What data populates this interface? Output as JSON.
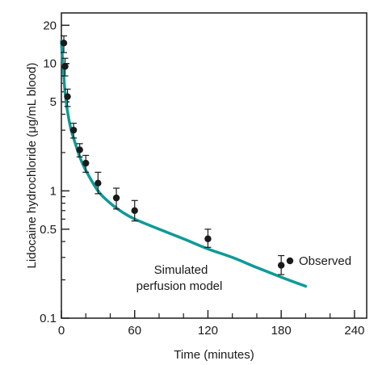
{
  "chart_data": {
    "type": "scatter",
    "title": "",
    "xlabel": "Time (minutes)",
    "ylabel": "Lidocaine hydrochloride (μg/mL blood)",
    "y_scale": "log",
    "xlim": [
      0,
      250
    ],
    "ylim": [
      0.1,
      25
    ],
    "x_ticks": [
      0,
      60,
      120,
      180,
      240
    ],
    "x_minor_ticks": [
      20,
      40,
      80,
      100,
      140,
      160,
      200,
      220
    ],
    "x_tick_labels": [
      "0",
      "60",
      "120",
      "180",
      "240"
    ],
    "y_ticks": [
      0.1,
      0.5,
      1,
      5,
      10,
      20
    ],
    "y_minor_ticks": [
      0.2,
      0.3,
      0.4,
      0.6,
      0.7,
      0.8,
      0.9,
      2,
      3,
      4,
      6,
      7,
      8,
      9
    ],
    "y_tick_labels": [
      "0.1",
      "0.5",
      "1",
      "5",
      "10",
      "20"
    ],
    "grid": false,
    "legend_position": "right",
    "series": [
      {
        "name": "Observed",
        "kind": "points_with_error_bars",
        "color": "#1a1a1a",
        "x": [
          2,
          3,
          5,
          10,
          15,
          20,
          30,
          45,
          60,
          120,
          180
        ],
        "y": [
          14.5,
          9.5,
          5.5,
          3.0,
          2.1,
          1.65,
          1.15,
          0.88,
          0.7,
          0.42,
          0.26
        ],
        "y_err_low": [
          12.2,
          8.0,
          4.6,
          2.6,
          1.85,
          1.4,
          0.95,
          0.72,
          0.58,
          0.36,
          0.22
        ],
        "y_err_high": [
          16.5,
          11.0,
          6.3,
          3.4,
          2.35,
          1.9,
          1.4,
          1.05,
          0.84,
          0.5,
          0.31
        ]
      },
      {
        "name": "Simulated perfusion model",
        "kind": "line",
        "color": "#0e9a96",
        "x": [
          0,
          1,
          2,
          3,
          5,
          8,
          10,
          15,
          20,
          30,
          40,
          50,
          60,
          80,
          100,
          120,
          140,
          160,
          180,
          200
        ],
        "y": [
          15,
          10.5,
          8.0,
          6.0,
          4.2,
          3.0,
          2.6,
          1.85,
          1.45,
          1.0,
          0.8,
          0.68,
          0.6,
          0.5,
          0.42,
          0.35,
          0.3,
          0.25,
          0.21,
          0.178
        ]
      }
    ],
    "annotations": [
      {
        "text_lines": [
          "Simulated",
          "perfusion model"
        ],
        "points_to": "Simulated perfusion model"
      }
    ]
  }
}
